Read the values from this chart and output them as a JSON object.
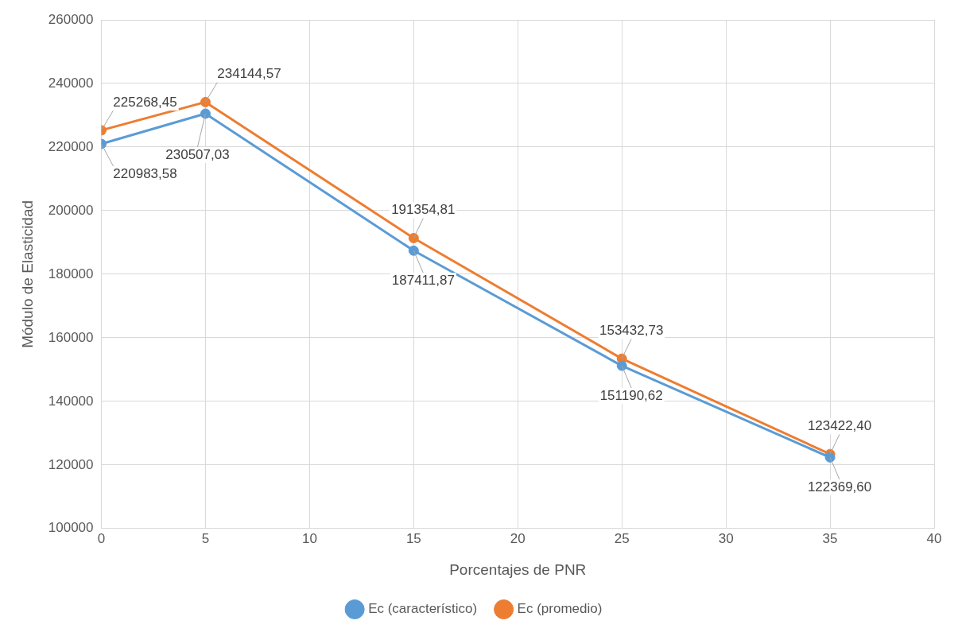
{
  "chart_data": {
    "type": "line",
    "xlabel": "Porcentajes de PNR",
    "ylabel": "Módulo de Elasticidad",
    "x": [
      0,
      5,
      15,
      25,
      35
    ],
    "series": [
      {
        "name": "Ec (característico)",
        "color": "#5b9bd5",
        "values": [
          220983.58,
          230507.03,
          187411.87,
          151190.62,
          122369.6
        ],
        "value_labels": [
          "220983,58",
          "230507,03",
          "187411,87",
          "151190,62",
          "122369,60"
        ]
      },
      {
        "name": "Ec (promedio)",
        "color": "#ed7d31",
        "values": [
          225268.45,
          234144.57,
          191354.81,
          153432.73,
          123422.4
        ],
        "value_labels": [
          "225268,45",
          "234144,57",
          "191354,81",
          "153432,73",
          "123422,40"
        ]
      }
    ],
    "xlim": [
      0,
      40
    ],
    "xticks": [
      0,
      5,
      10,
      15,
      20,
      25,
      30,
      35,
      40
    ],
    "ylim": [
      100000,
      260000
    ],
    "yticks": [
      100000,
      120000,
      140000,
      160000,
      180000,
      200000,
      220000,
      240000,
      260000
    ],
    "grid": true,
    "legend": "bottom",
    "marker": "circle",
    "line_style": "solid"
  }
}
